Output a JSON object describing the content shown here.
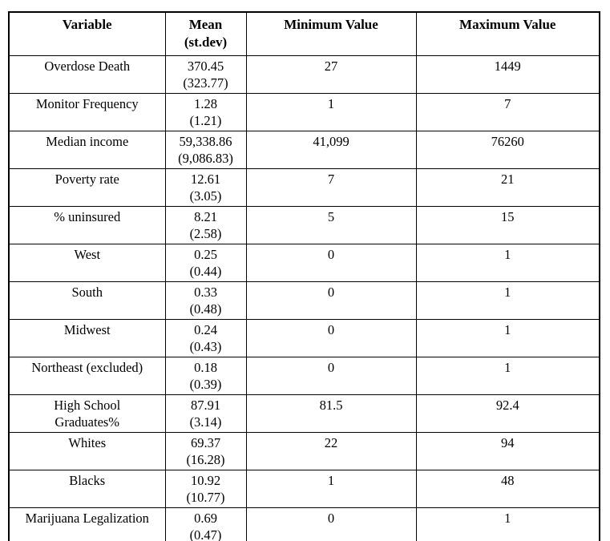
{
  "page": {
    "background_color": "#ffffff",
    "border_color": "#000000",
    "text_color": "#000000"
  },
  "table": {
    "columns": [
      {
        "label": "Variable"
      },
      {
        "label": "Mean",
        "sublabel": "(st.dev)"
      },
      {
        "label": "Minimum Value"
      },
      {
        "label": "Maximum Value"
      }
    ],
    "rows": [
      {
        "variable": "Overdose Death",
        "mean": "370.45",
        "st_dev": "(323.77)",
        "min": "27",
        "max": "1449"
      },
      {
        "variable": "Monitor Frequency",
        "mean": "1.28",
        "st_dev": "(1.21)",
        "min": "1",
        "max": "7"
      },
      {
        "variable": "Median income",
        "mean": "59,338.86",
        "st_dev": "(9,086.83)",
        "min": "41,099",
        "max": "76260"
      },
      {
        "variable": "Poverty rate",
        "mean": "12.61",
        "st_dev": "(3.05)",
        "min": "7",
        "max": "21"
      },
      {
        "variable": "% uninsured",
        "mean": "8.21",
        "st_dev": "(2.58)",
        "min": "5",
        "max": "15"
      },
      {
        "variable": "West",
        "mean": "0.25",
        "st_dev": "(0.44)",
        "min": "0",
        "max": "1"
      },
      {
        "variable": "South",
        "mean": "0.33",
        "st_dev": "(0.48)",
        "min": "0",
        "max": "1"
      },
      {
        "variable": "Midwest",
        "mean": "0.24",
        "st_dev": "(0.43)",
        "min": "0",
        "max": "1"
      },
      {
        "variable": "Northeast (excluded)",
        "mean": "0.18",
        "st_dev": "(0.39)",
        "min": "0",
        "max": "1"
      },
      {
        "variable": "High School\nGraduates%",
        "mean": "87.91",
        "st_dev": "(3.14)",
        "min": "81.5",
        "max": "92.4"
      },
      {
        "variable": "Whites",
        "mean": "69.37",
        "st_dev": "(16.28)",
        "min": "22",
        "max": "94"
      },
      {
        "variable": "Blacks",
        "mean": "10.92",
        "st_dev": "(10.77)",
        "min": "1",
        "max": "48"
      },
      {
        "variable": "Marijuana Legalization",
        "mean": "0.69",
        "st_dev": "(0.47)",
        "min": "0",
        "max": "1"
      }
    ]
  }
}
